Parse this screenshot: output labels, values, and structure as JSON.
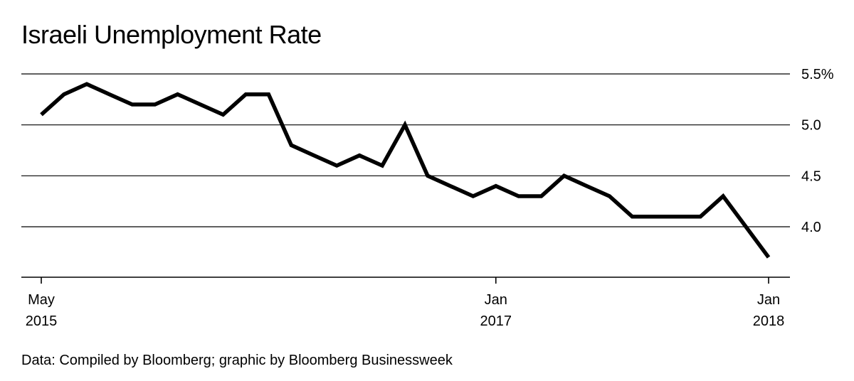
{
  "title": "Israeli Unemployment Rate",
  "source": "Data: Compiled by Bloomberg; graphic by Bloomberg Businessweek",
  "chart_data": {
    "type": "line",
    "title": "Israeli Unemployment Rate",
    "xlabel": "",
    "ylabel": "",
    "ylim": [
      3.5,
      5.5
    ],
    "yticks": [
      {
        "value": 5.5,
        "label": "5.5%"
      },
      {
        "value": 5.0,
        "label": "5.0"
      },
      {
        "value": 4.5,
        "label": "4.5"
      },
      {
        "value": 4.0,
        "label": "4.0"
      }
    ],
    "xticks": [
      {
        "date": "2015-05",
        "line1": "May",
        "line2": "2015"
      },
      {
        "date": "2017-01",
        "line1": "Jan",
        "line2": "2017"
      },
      {
        "date": "2018-01",
        "line1": "Jan",
        "line2": "2018"
      }
    ],
    "grid": true,
    "series": [
      {
        "x": [
          "2015-05",
          "2015-06",
          "2015-07",
          "2015-08",
          "2015-09",
          "2015-10",
          "2015-11",
          "2015-12",
          "2016-01",
          "2016-02",
          "2016-03",
          "2016-04",
          "2016-05",
          "2016-06",
          "2016-07",
          "2016-08",
          "2016-09",
          "2016-10",
          "2016-11",
          "2016-12",
          "2017-01",
          "2017-02",
          "2017-03",
          "2017-04",
          "2017-05",
          "2017-06",
          "2017-07",
          "2017-08",
          "2017-09",
          "2017-10",
          "2017-11",
          "2017-12",
          "2018-01"
        ],
        "values": [
          5.1,
          5.3,
          5.4,
          5.3,
          5.2,
          5.2,
          5.3,
          5.2,
          5.1,
          5.3,
          5.3,
          4.8,
          4.7,
          4.6,
          4.7,
          4.6,
          5.0,
          4.5,
          4.4,
          4.3,
          4.4,
          4.3,
          4.3,
          4.5,
          4.4,
          4.3,
          4.1,
          4.1,
          4.1,
          4.1,
          4.3,
          4.0,
          3.7
        ]
      }
    ],
    "line_color": "#000000",
    "grid_color": "#000000"
  }
}
